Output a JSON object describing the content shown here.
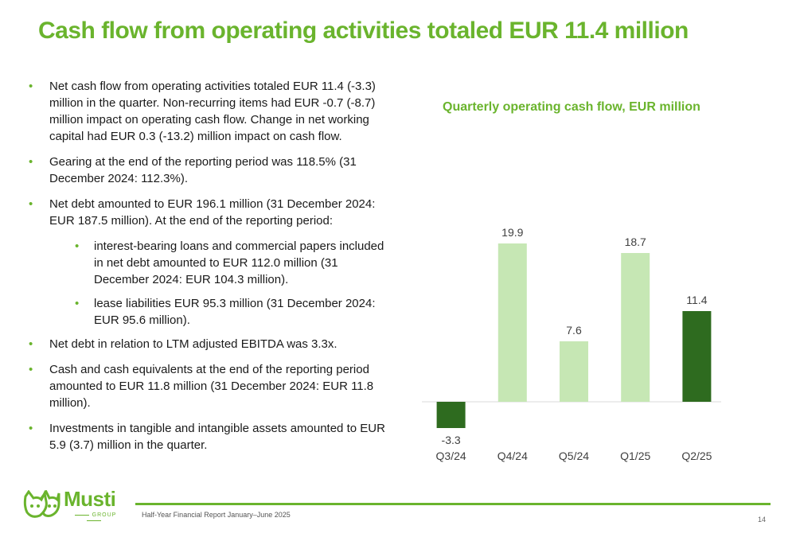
{
  "slide": {
    "title": "Cash flow from operating activities totaled EUR 11.4 million",
    "bullets": [
      "Net cash flow from operating activities totaled EUR 11.4 (-3.3) million in the quarter. Non-recurring items had EUR -0.7 (-8.7) million impact on operating cash flow. Change in net working capital had EUR 0.3 (-13.2) million impact on cash flow.",
      "Gearing at the end of the reporting period was 118.5% (31 December 2024: 112.3%).",
      "Net debt amounted to EUR 196.1 million (31 December 2024: EUR 187.5 million). At the end of the reporting period:",
      "interest-bearing loans and commercial papers included in net debt amounted to EUR 112.0 million (31 December 2024: EUR 104.3 million).",
      "lease liabilities EUR 95.3 million (31 December 2024: EUR 95.6 million).",
      "Net debt in relation to LTM adjusted EBITDA was 3.3x.",
      "Cash and cash equivalents at the end of the reporting period amounted to EUR 11.8 million (31 December 2024: EUR 11.8 million).",
      "Investments in tangible and intangible assets amounted to EUR 5.9 (3.7) million in the quarter."
    ]
  },
  "chart_data": {
    "type": "bar",
    "title": "Quarterly operating cash flow, EUR million",
    "categories": [
      "Q3/24",
      "Q4/24",
      "Q5/24",
      "Q1/25",
      "Q2/25"
    ],
    "values": [
      -3.3,
      19.9,
      7.6,
      18.7,
      11.4
    ],
    "value_labels": [
      "-3.3",
      "19.9",
      "7.6",
      "18.7",
      "11.4"
    ],
    "bar_colors": [
      "#2e6b1f",
      "#c6e7b4",
      "#c6e7b4",
      "#c6e7b4",
      "#2e6b1f"
    ],
    "grid": false,
    "ylim": [
      -3.3,
      19.9
    ]
  },
  "footer": {
    "report": "Half-Year Financial Report January–June 2025",
    "page": "14"
  },
  "logo": {
    "word": "Musti",
    "sub": "GROUP"
  },
  "colors": {
    "brand_green": "#6ab42d",
    "dark_green": "#2e6b1f",
    "light_green": "#c6e7b4"
  }
}
